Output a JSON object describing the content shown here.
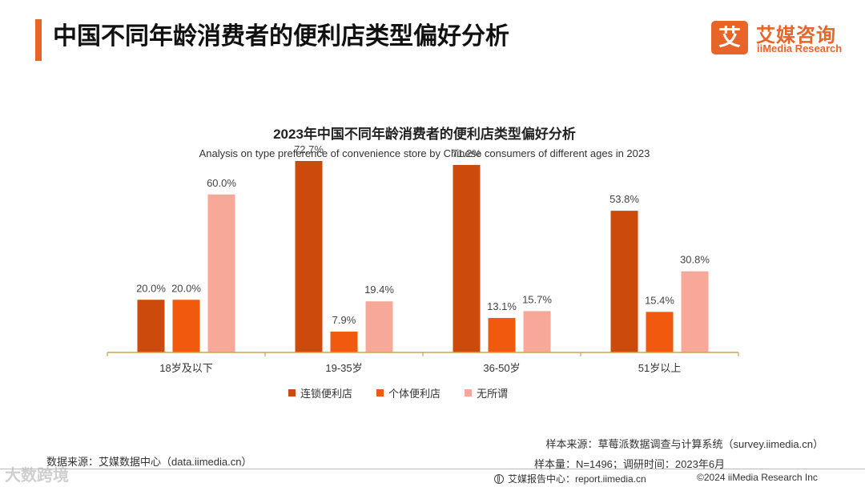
{
  "header": {
    "title": "中国不同年龄消费者的便利店类型偏好分析",
    "logo_mark": "艾",
    "logo_cn": "艾媒咨询",
    "logo_en": "iiMedia Research"
  },
  "chart_data": {
    "type": "bar",
    "title": "2023年中国不同年龄消费者的便利店类型偏好分析",
    "subtitle": "Analysis on type preference of convenience store by Chinese consumers of different ages in 2023",
    "categories": [
      "18岁及以下",
      "19-35岁",
      "36-50岁",
      "51岁以上"
    ],
    "series": [
      {
        "name": "连锁便利店",
        "color": "#cc4a0c",
        "values": [
          20.0,
          72.7,
          71.2,
          53.8
        ]
      },
      {
        "name": "个体便利店",
        "color": "#f15a0e",
        "values": [
          20.0,
          7.9,
          13.1,
          15.4
        ]
      },
      {
        "name": "无所谓",
        "color": "#f7a898",
        "values": [
          60.0,
          19.4,
          15.7,
          30.8
        ]
      }
    ],
    "value_suffix": "%",
    "ylim": [
      0,
      80
    ],
    "grid": false,
    "xlabel": "",
    "ylabel": "",
    "axis_color": "#c9a25a",
    "legend_position": "bottom"
  },
  "footer": {
    "data_source": "数据来源：艾媒数据中心（data.iimedia.cn）",
    "sample_source": "样本来源：草莓派数据调查与计算系统（survey.iimedia.cn）",
    "sample_size": "样本量：N=1496；调研时间：2023年6月",
    "report_center": "艾媒报告中心：report.iimedia.cn",
    "copyright": "©2024  iiMedia Research  Inc",
    "watermark": "大数跨境"
  }
}
